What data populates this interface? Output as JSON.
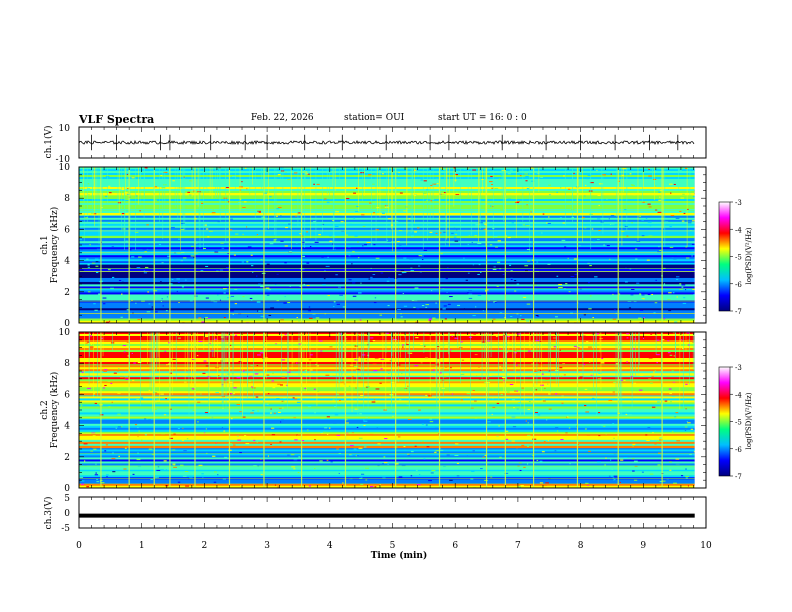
{
  "header": {
    "title": "VLF Spectra",
    "date": "Feb. 22, 2026",
    "station": "station= OUI",
    "start_ut": "start  UT =   16: 0  : 0"
  },
  "panels": {
    "ch1_wave": {
      "ylabel": "ch.1(V)",
      "ticks": [
        "10",
        "-10"
      ]
    },
    "ch1_spec": {
      "ylabel_1": "ch.1",
      "ylabel_2": "Frequency  (kHz)",
      "ticks": [
        "10",
        "8",
        "6",
        "4",
        "2",
        "0"
      ]
    },
    "ch2_spec": {
      "ylabel_1": "ch.2",
      "ylabel_2": "Frequency  (kHz)",
      "ticks": [
        "10",
        "8",
        "6",
        "4",
        "2",
        "0"
      ]
    },
    "ch3_wave": {
      "ylabel": "ch.3(V)",
      "ticks": [
        "5",
        "0",
        "-5"
      ]
    }
  },
  "colorbar": {
    "label": "log(PSD)(V²/Hz)",
    "ticks": [
      "-3",
      "-4",
      "-5",
      "-6",
      "-7"
    ],
    "colors": [
      "#00007f",
      "#0000ff",
      "#00bfff",
      "#00ff80",
      "#ffff00",
      "#ff0000",
      "#ff00ff",
      "#ffffff"
    ]
  },
  "chart_data": {
    "type": "heatmap",
    "title": "VLF Spectra",
    "xlabel": "Time  (min)",
    "x_ticks": [
      "0",
      "1",
      "2",
      "3",
      "4",
      "5",
      "6",
      "7",
      "8",
      "9",
      "10"
    ],
    "xlim": [
      0,
      10
    ],
    "data_end_min": 9.82,
    "series": [
      {
        "name": "ch.1 waveform",
        "unit": "V",
        "ylim": [
          -10,
          10
        ],
        "baseline": 0,
        "noise_amplitude": 1,
        "spikes": [
          0.2,
          0.6,
          1.3,
          1.45,
          2.1,
          2.65,
          3.0,
          3.6,
          4.2,
          4.9,
          5.6,
          5.9,
          6.75,
          7.45,
          8.0,
          8.55,
          9.1,
          9.55
        ]
      },
      {
        "name": "ch.1 spectrogram",
        "unit": "kHz",
        "ylim": [
          0,
          10
        ],
        "level_by_band_khz": [
          {
            "f": [
              0,
              0.4
            ],
            "log_psd": -4.6
          },
          {
            "f": [
              0.4,
              1.2
            ],
            "log_psd": -6.4
          },
          {
            "f": [
              1.2,
              2.6
            ],
            "log_psd": -5.8
          },
          {
            "f": [
              2.6,
              3.4
            ],
            "log_psd": -6.5
          },
          {
            "f": [
              3.4,
              4.0
            ],
            "log_psd": -6.2
          },
          {
            "f": [
              4.0,
              5.5
            ],
            "log_psd": -6.0
          },
          {
            "f": [
              5.5,
              7.0
            ],
            "log_psd": -5.5
          },
          {
            "f": [
              7.0,
              10
            ],
            "log_psd": -5.0
          }
        ],
        "line_frequencies_khz": [
          0.6,
          1.4,
          2.2,
          3.3,
          3.5,
          4.5,
          5.9,
          7.2,
          8.2
        ],
        "burst_times_min": [
          0.35,
          0.8,
          1.2,
          1.45,
          1.85,
          2.4,
          2.95,
          3.55,
          4.25,
          5.05,
          5.75,
          6.5,
          6.8,
          7.25,
          7.95,
          8.6,
          9.3
        ]
      },
      {
        "name": "ch.2 spectrogram",
        "unit": "kHz",
        "ylim": [
          0,
          10
        ],
        "level_by_band_khz": [
          {
            "f": [
              0,
              0.4
            ],
            "log_psd": -4.4
          },
          {
            "f": [
              0.4,
              1.2
            ],
            "log_psd": -6.0
          },
          {
            "f": [
              1.2,
              2.6
            ],
            "log_psd": -5.6
          },
          {
            "f": [
              2.6,
              3.6
            ],
            "log_psd": -4.6
          },
          {
            "f": [
              3.6,
              4.5
            ],
            "log_psd": -5.6
          },
          {
            "f": [
              4.5,
              6.0
            ],
            "log_psd": -5.0
          },
          {
            "f": [
              6.0,
              8.0
            ],
            "log_psd": -4.4
          },
          {
            "f": [
              8.0,
              10
            ],
            "log_psd": -4.1
          }
        ],
        "line_frequencies_khz": [
          0.6,
          1.4,
          2.2,
          3.3,
          3.5,
          4.5,
          5.1,
          6.8,
          7.2
        ],
        "burst_times_min": [
          0.35,
          0.8,
          1.2,
          1.45,
          1.85,
          2.4,
          2.95,
          3.55,
          4.25,
          5.05,
          5.75,
          6.5,
          6.8,
          7.25,
          7.95,
          8.6,
          9.3
        ]
      },
      {
        "name": "ch.3 waveform",
        "unit": "V",
        "ylim": [
          -5,
          5
        ],
        "baseline": -1,
        "noise_amplitude": 0.2
      }
    ]
  }
}
